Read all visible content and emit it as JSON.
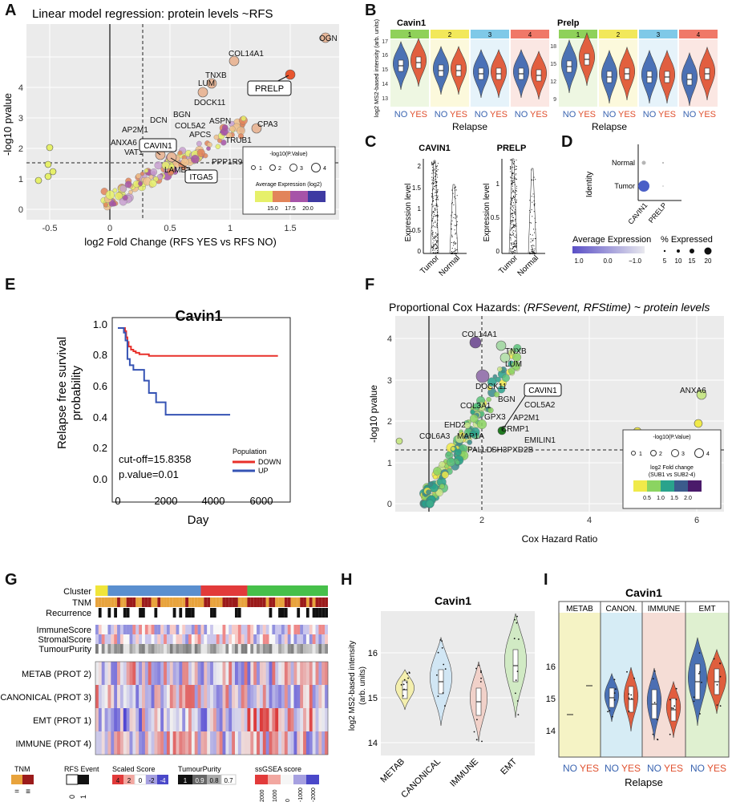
{
  "panels": {
    "A": {
      "letter": "A",
      "title": "Linear model regression: protein levels ~RFS",
      "xlabel": "log2 Fold Change (RFS YES vs RFS NO)",
      "ylabel": "-log10 pvalue",
      "xticks": [
        "-0.5",
        "0",
        "0.5",
        "1",
        "1.5"
      ],
      "yticks": [
        "0",
        "1",
        "2",
        "3",
        "4"
      ],
      "legend": {
        "size_title": "-log10(P.Value)",
        "size_labels": [
          "1",
          "2",
          "3",
          "4"
        ],
        "color_title": "Average Expression (log2)",
        "color_labels": [
          "15.0",
          "17.5",
          "20.0"
        ]
      },
      "callouts": [
        "PRELP",
        "CAVIN1",
        "ITGA5"
      ],
      "gene_labels": [
        "OGN",
        "COL14A1",
        "TNXB",
        "LUM",
        "DOCK11",
        "BGN",
        "DCN",
        "AP2M1",
        "COL5A2",
        "ASPN",
        "CPA3",
        "APCS",
        "TRUB1",
        "ANXA6",
        "VAT1",
        "LAMB2",
        "PPP1R9B"
      ]
    },
    "B": {
      "letter": "B",
      "ylabel": "log2 MS2-based intensity (arb. units)",
      "xlabel": "Relapse",
      "groups": [
        "NO",
        "YES"
      ],
      "plots": [
        {
          "gene": "Cavin1",
          "strips": [
            "1",
            "2",
            "3",
            "4"
          ],
          "yticks": [
            "13",
            "14",
            "15",
            "16",
            "17"
          ]
        },
        {
          "gene": "Prelp",
          "strips": [
            "1",
            "2",
            "3",
            "4"
          ],
          "yticks": [
            "9",
            "12",
            "15",
            "18"
          ]
        }
      ]
    },
    "C": {
      "letter": "C",
      "ylabel": "Expression level",
      "categories": [
        "Tumor",
        "Normal"
      ],
      "plots": [
        {
          "gene": "CAVIN1",
          "yticks": [
            "0",
            "0.5",
            "1",
            "1.5",
            "2"
          ]
        },
        {
          "gene": "PRELP",
          "yticks": [
            "0",
            "0.5",
            "1"
          ]
        }
      ]
    },
    "D": {
      "letter": "D",
      "ylabel": "Identity",
      "rows": [
        "Normal",
        "Tumor"
      ],
      "cols": [
        "CAVIN1",
        "PRELP"
      ],
      "avg_title": "Average Expression",
      "avg_ticks": [
        "1.0",
        "0.0",
        "−1.0"
      ],
      "pct_title": "% Expressed",
      "pct_ticks": [
        "5",
        "10",
        "15",
        "20"
      ]
    },
    "E": {
      "letter": "E",
      "title": "Cavin1",
      "ylabel": "Relapse free survival probability",
      "xlabel": "Day",
      "xticks": [
        "0",
        "2000",
        "4000",
        "6000"
      ],
      "yticks": [
        "0.0",
        "0.2",
        "0.4",
        "0.6",
        "0.8",
        "1.0"
      ],
      "cutoff": "cut-off=15.8358",
      "pvalue": "p.value=0.01",
      "legend_title": "Population",
      "legend_items": [
        {
          "label": "DOWN",
          "color": "#e8302a"
        },
        {
          "label": "UP",
          "color": "#3553b4"
        }
      ]
    },
    "F": {
      "letter": "F",
      "title_plain": "Proportional Cox Hazards: ",
      "title_italic": "(RFSevent, RFStime) ~ protein levels",
      "xlabel": "Cox Hazard Ratio",
      "ylabel": "-log10 pvalue",
      "xticks": [
        "2",
        "4",
        "6"
      ],
      "yticks": [
        "0",
        "1",
        "2",
        "3",
        "4"
      ],
      "callout": "CAVIN1",
      "legend": {
        "size_title": "-log10(P.Value)",
        "size_labels": [
          "1",
          "2",
          "3",
          "4"
        ],
        "color_title": "log2 Fold change",
        "color_subtitle": "(SUB1 vs SUB2-4)",
        "color_labels": [
          "0.5",
          "1.0",
          "1.5",
          "2.0"
        ]
      },
      "gene_labels": [
        "COL14A1",
        "TNXB",
        "LUM",
        "DOCK11",
        "BGN",
        "COL5A2",
        "COL3A1",
        "GPX3",
        "AP2M1",
        "EHD2",
        "CRMP1",
        "COL6A3",
        "MAP1A",
        "EMILIN1",
        "PALLD",
        "SH3PXD2B",
        "ANXA6"
      ]
    },
    "G": {
      "letter": "G",
      "top_rows": [
        "Cluster",
        "TNM",
        "Recurrence"
      ],
      "score_rows": [
        "ImmuneScore",
        "StromalScore",
        "TumourPurity"
      ],
      "heat_rows": [
        "METAB (PROT 2)",
        "CANONICAL (PROT 3)",
        "EMT (PROT 1)",
        "IMMUNE (PROT 4)"
      ],
      "legend": {
        "tnm_title": "TNM",
        "tnm_colors": [
          "#e8a33c",
          "#9b1b1b"
        ],
        "rfs_title": "RFS Event",
        "rfs_ticks": [
          "0",
          "1"
        ],
        "scaled_title": "Scaled Score",
        "scaled_ticks": [
          "4",
          "2",
          "0",
          "-2",
          "-4"
        ],
        "purity_title": "TumourPurity",
        "purity_ticks": [
          "1",
          "0.9",
          "0.8",
          "0.7"
        ],
        "ssgsea_title": "ssGSEA score",
        "ssgsea_ticks": [
          "2000",
          "1000",
          "0",
          "-1000",
          "-2000"
        ]
      }
    },
    "H": {
      "letter": "H",
      "title": "Cavin1",
      "ylabel": "log2 MS2-based intensity (arb. units)",
      "yticks": [
        "14",
        "15",
        "16"
      ],
      "categories": [
        "METAB",
        "CANONICAL",
        "IMMUNE",
        "EMT"
      ]
    },
    "I": {
      "letter": "I",
      "title": "Cavin1",
      "xlabel": "Relapse",
      "strips": [
        "METAB",
        "CANON.",
        "IMMUNE",
        "EMT"
      ],
      "groups": [
        "NO",
        "YES"
      ],
      "yticks": [
        "14",
        "15",
        "16"
      ]
    }
  }
}
